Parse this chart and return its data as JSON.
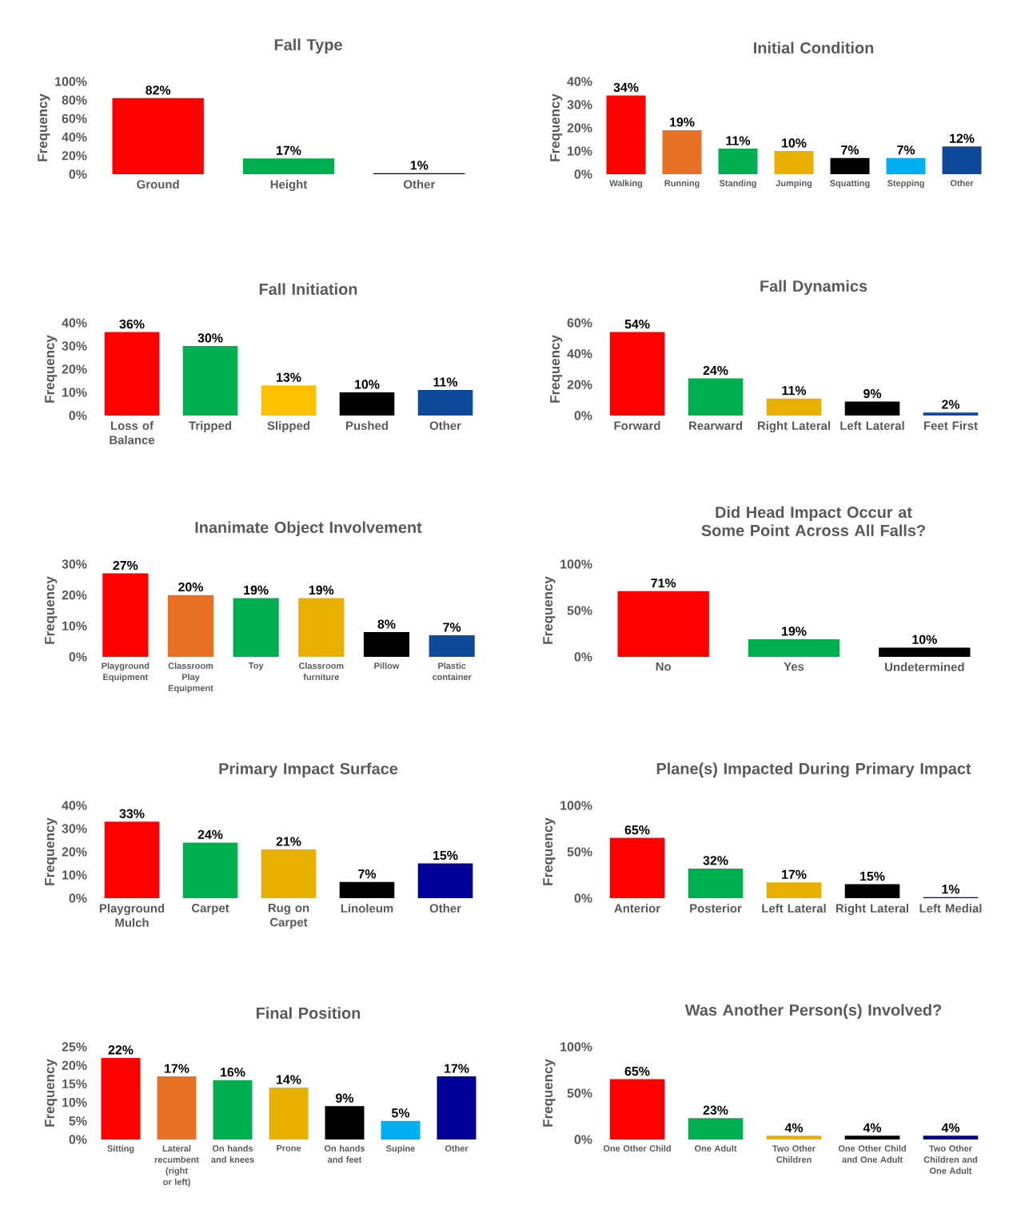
{
  "chart_data": [
    {
      "type": "bar",
      "title": "Fall Type",
      "ylabel": "Frequency",
      "categories": [
        "Ground",
        "Height",
        "Other"
      ],
      "values": [
        82,
        17,
        1
      ],
      "value_labels": [
        "82%",
        "17%",
        "1%"
      ],
      "colors": [
        "#ff0000",
        "#00b050",
        "#000000"
      ],
      "ylim": [
        0,
        100
      ],
      "yticks": [
        {
          "value": 0,
          "label": "0%"
        },
        {
          "value": 20,
          "label": "20%"
        },
        {
          "value": 40,
          "label": "40%"
        },
        {
          "value": 60,
          "label": "60%"
        },
        {
          "value": 80,
          "label": "80%"
        },
        {
          "value": 100,
          "label": "100%"
        }
      ]
    },
    {
      "type": "bar",
      "title": "Initial Condition",
      "ylabel": "Frequency",
      "categories": [
        "Walking",
        "Running",
        "Standing",
        "Jumping",
        "Squatting",
        "Stepping",
        "Other"
      ],
      "values": [
        34,
        19,
        11,
        10,
        7,
        7,
        12
      ],
      "value_labels": [
        "34%",
        "19%",
        "11%",
        "10%",
        "7%",
        "7%",
        "12%"
      ],
      "colors": [
        "#ff0000",
        "#e87025",
        "#00b050",
        "#e8b000",
        "#000000",
        "#00b0f0",
        "#0f4a9a"
      ],
      "ylim": [
        0,
        40
      ],
      "yticks": [
        {
          "value": 0,
          "label": "0%"
        },
        {
          "value": 10,
          "label": "10%"
        },
        {
          "value": 20,
          "label": "20%"
        },
        {
          "value": 30,
          "label": "30%"
        },
        {
          "value": 40,
          "label": "40%"
        }
      ]
    },
    {
      "type": "bar",
      "title": "Fall Initiation",
      "ylabel": "Frequency",
      "categories": [
        "Loss of Balance",
        "Tripped",
        "Slipped",
        "Pushed",
        "Other"
      ],
      "values": [
        36,
        30,
        13,
        10,
        11
      ],
      "value_labels": [
        "36%",
        "30%",
        "13%",
        "10%",
        "11%"
      ],
      "colors": [
        "#ff0000",
        "#00b050",
        "#ffc000",
        "#000000",
        "#0f4a9a"
      ],
      "ylim": [
        0,
        40
      ],
      "yticks": [
        {
          "value": 0,
          "label": "0%"
        },
        {
          "value": 10,
          "label": "10%"
        },
        {
          "value": 20,
          "label": "20%"
        },
        {
          "value": 30,
          "label": "30%"
        },
        {
          "value": 40,
          "label": "40%"
        }
      ]
    },
    {
      "type": "bar",
      "title": "Fall Dynamics",
      "ylabel": "Frequency",
      "categories": [
        "Forward",
        "Rearward",
        "Right Lateral",
        "Left Lateral",
        "Feet First"
      ],
      "values": [
        54,
        24,
        11,
        9,
        2
      ],
      "value_labels": [
        "54%",
        "24%",
        "11%",
        "9%",
        "2%"
      ],
      "colors": [
        "#ff0000",
        "#00b050",
        "#e8b000",
        "#000000",
        "#0f4a9a"
      ],
      "ylim": [
        0,
        60
      ],
      "yticks": [
        {
          "value": 0,
          "label": "0%"
        },
        {
          "value": 20,
          "label": "20%"
        },
        {
          "value": 40,
          "label": "40%"
        },
        {
          "value": 60,
          "label": "60%"
        }
      ]
    },
    {
      "type": "bar",
      "title": "Inanimate Object Involvement",
      "ylabel": "Frequency",
      "categories": [
        "Playground Equipment",
        "Classroom Play Equipment",
        "Toy",
        "Classroom furniture",
        "Pillow",
        "Plastic container"
      ],
      "values": [
        27,
        20,
        19,
        19,
        8,
        7
      ],
      "value_labels": [
        "27%",
        "20%",
        "19%",
        "19%",
        "8%",
        "7%"
      ],
      "colors": [
        "#ff0000",
        "#e87025",
        "#00b050",
        "#e8b000",
        "#000000",
        "#0f4a9a"
      ],
      "ylim": [
        0,
        30
      ],
      "yticks": [
        {
          "value": 0,
          "label": "0%"
        },
        {
          "value": 10,
          "label": "10%"
        },
        {
          "value": 20,
          "label": "20%"
        },
        {
          "value": 30,
          "label": "30%"
        }
      ]
    },
    {
      "type": "bar",
      "title": "Did Head Impact Occur at Some Point Across All Falls?",
      "ylabel": "Frequency",
      "categories": [
        "No",
        "Yes",
        "Undetermined"
      ],
      "values": [
        71,
        19,
        10
      ],
      "value_labels": [
        "71%",
        "19%",
        "10%"
      ],
      "colors": [
        "#ff0000",
        "#00b050",
        "#000000"
      ],
      "ylim": [
        0,
        100
      ],
      "yticks": [
        {
          "value": 0,
          "label": "0%"
        },
        {
          "value": 50,
          "label": "50%"
        },
        {
          "value": 100,
          "label": "100%"
        }
      ]
    },
    {
      "type": "bar",
      "title": "Primary Impact Surface",
      "ylabel": "Frequency",
      "categories": [
        "Playground Mulch",
        "Carpet",
        "Rug on Carpet",
        "Linoleum",
        "Other"
      ],
      "values": [
        33,
        24,
        21,
        7,
        15
      ],
      "value_labels": [
        "33%",
        "24%",
        "21%",
        "7%",
        "15%"
      ],
      "colors": [
        "#ff0000",
        "#00b050",
        "#e8b000",
        "#000000",
        "#000099"
      ],
      "ylim": [
        0,
        40
      ],
      "yticks": [
        {
          "value": 0,
          "label": "0%"
        },
        {
          "value": 10,
          "label": "10%"
        },
        {
          "value": 20,
          "label": "20%"
        },
        {
          "value": 30,
          "label": "30%"
        },
        {
          "value": 40,
          "label": "40%"
        }
      ]
    },
    {
      "type": "bar",
      "title": "Plane(s) Impacted During Primary Impact",
      "ylabel": "Frequency",
      "categories": [
        "Anterior",
        "Posterior",
        "Left Lateral",
        "Right Lateral",
        "Left Medial"
      ],
      "values": [
        65,
        32,
        17,
        15,
        1
      ],
      "value_labels": [
        "65%",
        "32%",
        "17%",
        "15%",
        "1%"
      ],
      "colors": [
        "#ff0000",
        "#00b050",
        "#e8b000",
        "#000000",
        "#000099"
      ],
      "ylim": [
        0,
        100
      ],
      "yticks": [
        {
          "value": 0,
          "label": "0%"
        },
        {
          "value": 50,
          "label": "50%"
        },
        {
          "value": 100,
          "label": "100%"
        }
      ]
    },
    {
      "type": "bar",
      "title": "Final Position",
      "ylabel": "Frequency",
      "categories": [
        "Sitting",
        "Lateral recumbent (right or left)",
        "On hands and knees",
        "Prone",
        "On hands and feet",
        "Supine",
        "Other"
      ],
      "values": [
        22,
        17,
        16,
        14,
        9,
        5,
        17
      ],
      "value_labels": [
        "22%",
        "17%",
        "16%",
        "14%",
        "9%",
        "5%",
        "17%"
      ],
      "colors": [
        "#ff0000",
        "#e87025",
        "#00b050",
        "#e8b000",
        "#000000",
        "#00b0f0",
        "#000099"
      ],
      "ylim": [
        0,
        25
      ],
      "yticks": [
        {
          "value": 0,
          "label": "0%"
        },
        {
          "value": 5,
          "label": "5%"
        },
        {
          "value": 10,
          "label": "10%"
        },
        {
          "value": 15,
          "label": "15%"
        },
        {
          "value": 20,
          "label": "20%"
        },
        {
          "value": 25,
          "label": "25%"
        }
      ]
    },
    {
      "type": "bar",
      "title": "Was Another Person(s) Involved?",
      "ylabel": "Frequency",
      "categories": [
        "One Other Child",
        "One Adult",
        "Two Other Children",
        "One Other Child and One Adult",
        "Two Other Children and One Adult"
      ],
      "values": [
        65,
        23,
        4,
        4,
        4
      ],
      "value_labels": [
        "65%",
        "23%",
        "4%",
        "4%",
        "4%"
      ],
      "colors": [
        "#ff0000",
        "#00b050",
        "#e8b000",
        "#000000",
        "#000099"
      ],
      "ylim": [
        0,
        100
      ],
      "yticks": [
        {
          "value": 0,
          "label": "0%"
        },
        {
          "value": 50,
          "label": "50%"
        },
        {
          "value": 100,
          "label": "100%"
        }
      ]
    }
  ]
}
